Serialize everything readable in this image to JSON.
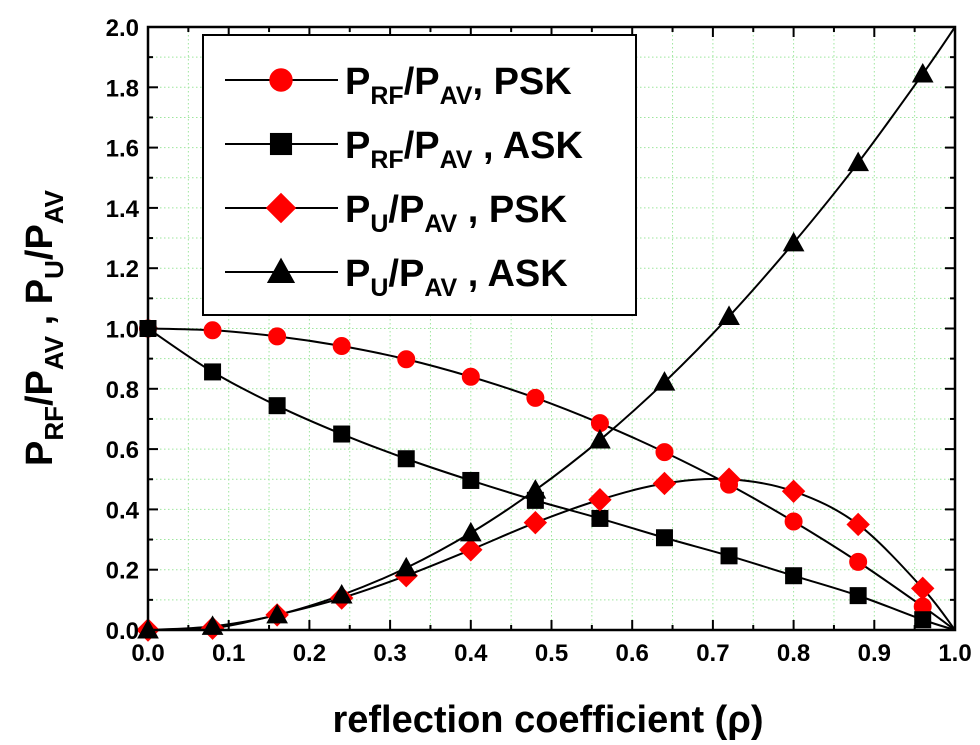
{
  "chart_data": {
    "type": "line",
    "xlabel": "reflection coefficient (ρ)",
    "ylabel": {
      "segments": [
        {
          "text": "P",
          "sub": false
        },
        {
          "text": "RF",
          "sub": true
        },
        {
          "text": "/P",
          "sub": false
        },
        {
          "text": "AV",
          "sub": true
        },
        {
          "text": " , P",
          "sub": false
        },
        {
          "text": "U",
          "sub": true
        },
        {
          "text": "/P",
          "sub": false
        },
        {
          "text": "AV",
          "sub": true
        }
      ]
    },
    "xlim": [
      0.0,
      1.0
    ],
    "ylim": [
      0.0,
      2.0
    ],
    "xticks": [
      "0.0",
      "0.1",
      "0.2",
      "0.3",
      "0.4",
      "0.5",
      "0.6",
      "0.7",
      "0.8",
      "0.9",
      "1.0"
    ],
    "yticks": [
      "0.0",
      "0.2",
      "0.4",
      "0.6",
      "0.8",
      "1.0",
      "1.2",
      "1.4",
      "1.6",
      "1.8",
      "2.0"
    ],
    "grid": true,
    "legend_position": "top-left",
    "series": [
      {
        "name": "P_RF/P_AV, PSK",
        "legend": [
          {
            "text": "P",
            "sub": false
          },
          {
            "text": "RF",
            "sub": true
          },
          {
            "text": "/P",
            "sub": false
          },
          {
            "text": "AV",
            "sub": true
          },
          {
            "text": ", PSK",
            "sub": false
          }
        ],
        "marker": "circle",
        "color": "#ff0000",
        "x": [
          0.0,
          0.08,
          0.16,
          0.24,
          0.32,
          0.4,
          0.48,
          0.56,
          0.64,
          0.72,
          0.8,
          0.88,
          0.96
        ],
        "y": [
          1.0,
          0.994,
          0.974,
          0.942,
          0.898,
          0.84,
          0.77,
          0.686,
          0.59,
          0.482,
          0.36,
          0.226,
          0.078
        ]
      },
      {
        "name": "P_RF/P_AV , ASK",
        "legend": [
          {
            "text": "P",
            "sub": false
          },
          {
            "text": "RF",
            "sub": true
          },
          {
            "text": "/P",
            "sub": false
          },
          {
            "text": "AV",
            "sub": true
          },
          {
            "text": " , ASK",
            "sub": false
          }
        ],
        "marker": "square",
        "color": "#000000",
        "x": [
          0.0,
          0.08,
          0.16,
          0.24,
          0.32,
          0.4,
          0.48,
          0.56,
          0.64,
          0.72,
          0.8,
          0.88,
          0.96
        ],
        "y": [
          1.0,
          0.856,
          0.744,
          0.65,
          0.568,
          0.496,
          0.43,
          0.37,
          0.306,
          0.246,
          0.18,
          0.114,
          0.034
        ]
      },
      {
        "name": "P_U/P_AV , PSK",
        "legend": [
          {
            "text": "P",
            "sub": false
          },
          {
            "text": "U",
            "sub": true
          },
          {
            "text": "/P",
            "sub": false
          },
          {
            "text": "AV",
            "sub": true
          },
          {
            "text": " , PSK",
            "sub": false
          }
        ],
        "marker": "diamond",
        "color": "#ff0000",
        "x": [
          0.0,
          0.08,
          0.16,
          0.24,
          0.32,
          0.4,
          0.48,
          0.56,
          0.64,
          0.72,
          0.8,
          0.88,
          0.96
        ],
        "y": [
          0.0,
          0.006,
          0.05,
          0.106,
          0.18,
          0.266,
          0.356,
          0.432,
          0.486,
          0.5,
          0.46,
          0.35,
          0.138
        ]
      },
      {
        "name": "P_U/P_AV , ASK",
        "legend": [
          {
            "text": "P",
            "sub": false
          },
          {
            "text": "U",
            "sub": true
          },
          {
            "text": "/P",
            "sub": false
          },
          {
            "text": "AV",
            "sub": true
          },
          {
            "text": " , ASK",
            "sub": false
          }
        ],
        "marker": "triangle",
        "color": "#000000",
        "x": [
          0.0,
          0.08,
          0.16,
          0.24,
          0.32,
          0.4,
          0.48,
          0.56,
          0.64,
          0.72,
          0.8,
          0.88,
          0.96
        ],
        "y": [
          0.0,
          0.012,
          0.05,
          0.116,
          0.206,
          0.322,
          0.464,
          0.63,
          0.822,
          1.04,
          1.284,
          1.55,
          1.844
        ]
      }
    ],
    "colors": {
      "grid": "#9ee69e",
      "axis": "#000000",
      "red": "#ff0000",
      "black": "#000000"
    }
  }
}
